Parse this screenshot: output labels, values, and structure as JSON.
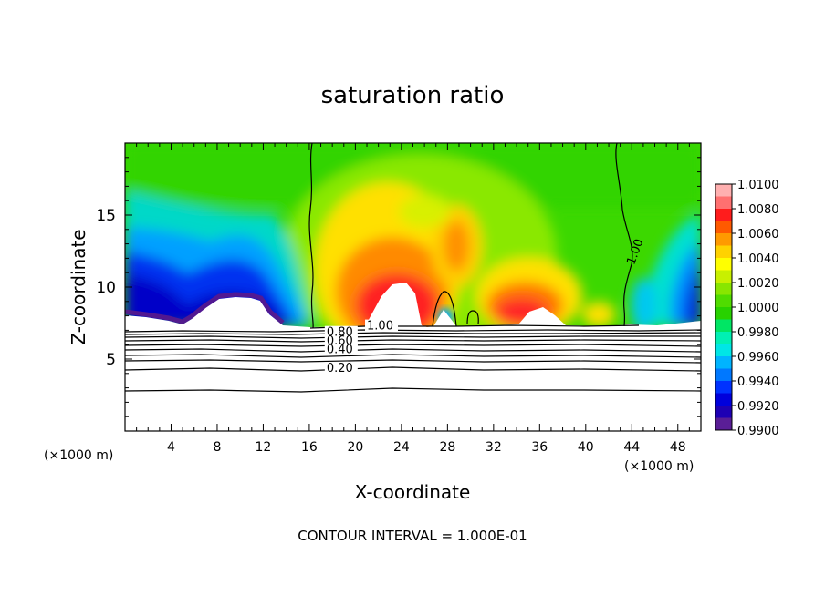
{
  "chart_data": {
    "type": "heatmap",
    "title": "saturation ratio",
    "xlabel": "X-coordinate",
    "ylabel": "Z-coordinate",
    "x_unit": "(×1000 m)",
    "xlim": [
      0,
      50
    ],
    "ylim": [
      0,
      20
    ],
    "x_ticks": [
      4,
      8,
      12,
      16,
      20,
      24,
      28,
      32,
      36,
      40,
      44,
      48
    ],
    "y_ticks": [
      5,
      10,
      15
    ],
    "colorbar": {
      "min": 0.99,
      "max": 1.01,
      "labels": [
        "1.0100",
        "1.0080",
        "1.0060",
        "1.0040",
        "1.0020",
        "1.0000",
        "0.9980",
        "0.9960",
        "0.9940",
        "0.9920",
        "0.9900"
      ],
      "colors": [
        "#ffb0b0",
        "#ff7070",
        "#ff1c1c",
        "#ff5a00",
        "#ff9a00",
        "#ffd200",
        "#ffff00",
        "#c8f000",
        "#88e600",
        "#50dc00",
        "#28d200",
        "#00e664",
        "#00f0b4",
        "#00e6e6",
        "#00b4ff",
        "#0078ff",
        "#0032ff",
        "#0000dc",
        "#1e00b4",
        "#5a1e96"
      ]
    },
    "contour_labels": [
      {
        "text": "1.00",
        "x": 44.2,
        "y": 11.5
      },
      {
        "text": "1.00",
        "x": 21.0,
        "y": 7.05
      },
      {
        "text": "0.80",
        "x": 17.5,
        "y": 6.6
      },
      {
        "text": "0.60",
        "x": 17.5,
        "y": 6.0
      },
      {
        "text": "0.40",
        "x": 17.5,
        "y": 5.4
      },
      {
        "text": "0.20",
        "x": 17.5,
        "y": 4.1
      }
    ],
    "contour_interval_text": "CONTOUR INTERVAL = 1.000E-01"
  }
}
